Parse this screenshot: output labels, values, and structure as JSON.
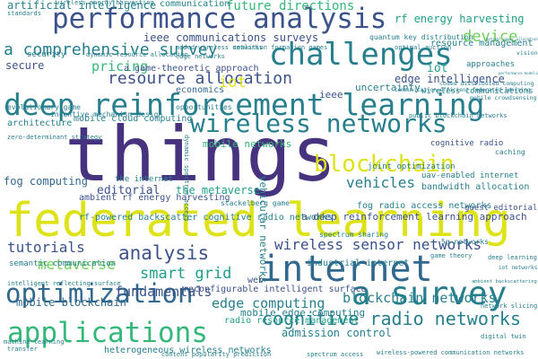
{
  "colors": {
    "dark_purple": "#46327e",
    "indigo": "#3b528b",
    "blue": "#365c8d",
    "slate": "#31688e",
    "teal": "#277f8e",
    "teal_green": "#1f9e89",
    "green": "#35b779",
    "light_green": "#6ece58",
    "lime": "#b5de2b",
    "yellow": "#dde318"
  },
  "words": [
    {
      "id": "things",
      "text": "things"
    },
    {
      "id": "federated-learning",
      "text": "federated learning"
    },
    {
      "id": "deep-reinforcement-learning",
      "text": "deep reinforcement learning"
    },
    {
      "id": "performance-analysis",
      "text": "performance analysis"
    },
    {
      "id": "challenges",
      "text": "challenges"
    },
    {
      "id": "internet",
      "text": "internet"
    },
    {
      "id": "wireless-networks",
      "text": "wireless networks"
    },
    {
      "id": "a-survey",
      "text": "a survey"
    },
    {
      "id": "optimization",
      "text": "optimization"
    },
    {
      "id": "applications",
      "text": "applications"
    },
    {
      "id": "blockchain",
      "text": "blockchain"
    },
    {
      "id": "resource-allocation",
      "text": "resource allocation"
    },
    {
      "id": "cognitive-radio-networks",
      "text": "cognitive radio networks"
    },
    {
      "id": "a-comprehensive-survey",
      "text": "a comprehensive survey"
    },
    {
      "id": "wireless-sensor-networks",
      "text": "wireless sensor networks"
    },
    {
      "id": "analysis",
      "text": "analysis"
    },
    {
      "id": "blockchain-networks",
      "text": "blockchain networks"
    },
    {
      "id": "device",
      "text": "device"
    },
    {
      "id": "vehicles",
      "text": "vehicles"
    },
    {
      "id": "smart-grid",
      "text": "smart grid"
    },
    {
      "id": "metaverse",
      "text": "metaverse"
    },
    {
      "id": "pricing",
      "text": "pricing"
    },
    {
      "id": "edge-computing",
      "text": "edge computing"
    },
    {
      "id": "fundamentals",
      "text": "fundamentals"
    },
    {
      "id": "tutorials",
      "text": "tutorials"
    },
    {
      "id": "iot",
      "text": "iot"
    },
    {
      "id": "future-directions",
      "text": "future directions"
    },
    {
      "id": "ieee-communications-surveys",
      "text": "ieee communications surveys"
    },
    {
      "id": "editorial",
      "text": "editorial"
    },
    {
      "id": "a-deep-reinforcement-learning-approach",
      "text": "a deep reinforcement learning approach"
    },
    {
      "id": "mobile-blockchain",
      "text": "mobile blockchain"
    },
    {
      "id": "admission-control",
      "text": "admission control"
    },
    {
      "id": "edge-intelligence",
      "text": "edge intelligence"
    },
    {
      "id": "uncertainty",
      "text": "uncertainty"
    },
    {
      "id": "secure",
      "text": "secure"
    },
    {
      "id": "security",
      "text": "security"
    },
    {
      "id": "resource-management",
      "text": "resource management"
    },
    {
      "id": "rf-energy-harvesting",
      "text": "rf energy harvesting"
    },
    {
      "id": "artificial-intelligence",
      "text": "artificial intelligence"
    },
    {
      "id": "a-game-theoretic-approach",
      "text": "a game-theoretic approach"
    },
    {
      "id": "architecture",
      "text": "architecture"
    },
    {
      "id": "mobile-cloud-computing",
      "text": "mobile cloud computing"
    },
    {
      "id": "fog-computing",
      "text": "fog computing"
    },
    {
      "id": "the-metaverse",
      "text": "the metaverse"
    },
    {
      "id": "ambient-rf-energy-harvesting",
      "text": "ambient rf energy harvesting"
    },
    {
      "id": "vehicular-networks",
      "text": "vehicular networks"
    },
    {
      "id": "mobile-networks",
      "text": "mobile networks"
    },
    {
      "id": "fog-radio-access-networks",
      "text": "fog radio access networks"
    },
    {
      "id": "industrial-internet",
      "text": "industrial internet"
    },
    {
      "id": "reconfigurable-intelligent-surface",
      "text": "reconfigurable intelligent surface"
    },
    {
      "id": "radio-resource-management",
      "text": "radio resource management"
    },
    {
      "id": "mobile-edge-computing",
      "text": "mobile edge computing"
    },
    {
      "id": "heterogeneous-wireless-networks",
      "text": "heterogeneous wireless networks"
    },
    {
      "id": "rf-powered-backscatter-cognitive-radio-networks",
      "text": "rf-powered backscatter cognitive radio networks"
    },
    {
      "id": "semantic-communication",
      "text": "semantic communication"
    },
    {
      "id": "deep-learning",
      "text": "deep learning"
    },
    {
      "id": "iot-networks",
      "text": "iot networks"
    },
    {
      "id": "cognitive-radio",
      "text": "cognitive radio"
    },
    {
      "id": "uav-enabled-internet",
      "text": "uav-enabled internet"
    },
    {
      "id": "bandwidth-allocation",
      "text": "bandwidth allocation"
    },
    {
      "id": "joint-optimization",
      "text": "joint optimization"
    },
    {
      "id": "guest-editorial",
      "text": "guest editorial"
    },
    {
      "id": "the-internet",
      "text": "the internet"
    },
    {
      "id": "communication",
      "text": "communication"
    },
    {
      "id": "vision",
      "text": "vision"
    },
    {
      "id": "approaches",
      "text": "approaches"
    },
    {
      "id": "economics",
      "text": "economics"
    },
    {
      "id": "opportunities",
      "text": "opportunities"
    },
    {
      "id": "incentive-mechanism-design",
      "text": "incentive mechanism design"
    },
    {
      "id": "evolutionary-game",
      "text": "evolutionary game"
    },
    {
      "id": "web",
      "text": "web"
    },
    {
      "id": "ieee",
      "text": "ieee"
    },
    {
      "id": "iot-lower",
      "text": "iot"
    },
    {
      "id": "5g-networks",
      "text": "5g networks"
    },
    {
      "id": "caching",
      "text": "caching"
    },
    {
      "id": "ambient-backscattering",
      "text": "ambient backscattering"
    },
    {
      "id": "quantum-key-distribution",
      "text": "quantum key distribution"
    },
    {
      "id": "spectrum-sharing",
      "text": "spectrum sharing"
    },
    {
      "id": "coded-distributed-computing",
      "text": "coded distributed computing"
    },
    {
      "id": "wireless-communications",
      "text": "wireless communications"
    },
    {
      "id": "public-blockchain-networks",
      "text": "public blockchain networks"
    },
    {
      "id": "stackelberg-game",
      "text": "stackelberg game"
    },
    {
      "id": "mobile-crowdsensing",
      "text": "mobile crowdsensing"
    },
    {
      "id": "performance-modeling",
      "text": "performance modeling"
    },
    {
      "id": "dynamic-spectrum-access",
      "text": "dynamic spectrum access"
    },
    {
      "id": "standards",
      "text": "standards"
    },
    {
      "id": "transfer",
      "text": "transfer"
    },
    {
      "id": "digital-twin",
      "text": "digital twin"
    },
    {
      "id": "machine-learning",
      "text": "machine learning"
    },
    {
      "id": "optimal-power-allocation",
      "text": "optimal power allocation"
    },
    {
      "id": "game-theory",
      "text": "game theory"
    },
    {
      "id": "intelligent-reflecting-surface",
      "text": "intelligent reflecting surface"
    },
    {
      "id": "network-slicing",
      "text": "network slicing"
    },
    {
      "id": "zero-determinant-strategy",
      "text": "zero-determinant strategy"
    },
    {
      "id": "coalition-formation-games",
      "text": "coalition formation games"
    },
    {
      "id": "dynamic-resource-allocation",
      "text": "dynamic resource allocation"
    },
    {
      "id": "added-wireless-networks",
      "text": "added wireless networks"
    },
    {
      "id": "edge-networks",
      "text": "edge networks"
    },
    {
      "id": "wireless-energy-harvesting",
      "text": "wireless energy harvesting"
    },
    {
      "id": "communication-efficient-federated-learning",
      "text": "communication-efficient federated learning"
    },
    {
      "id": "optimal-auction",
      "text": "optimal auction"
    },
    {
      "id": "content-popularity-prediction",
      "text": "content popularity prediction"
    },
    {
      "id": "wireless-powered-communication-networks",
      "text": "wireless-powered communication networks"
    },
    {
      "id": "spectrum-access",
      "text": "spectrum access"
    }
  ]
}
